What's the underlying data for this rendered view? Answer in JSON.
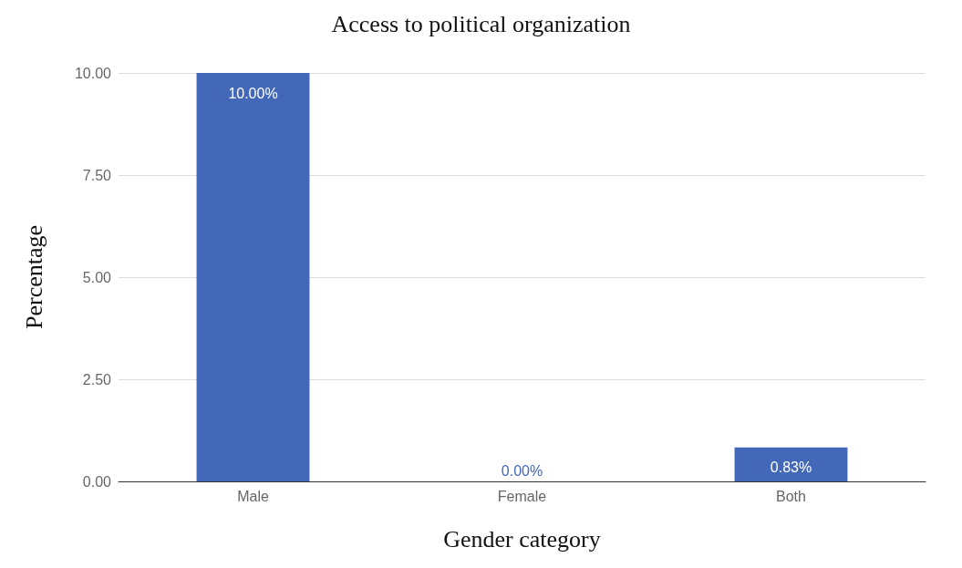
{
  "chart_data": {
    "type": "bar",
    "title": "Access to political organization",
    "xlabel": "Gender category",
    "ylabel": "Percentage",
    "categories": [
      "Male",
      "Female",
      "Both"
    ],
    "values": [
      10,
      0,
      0.83
    ],
    "value_labels": [
      "10.00%",
      "0.00%",
      "0.83%"
    ],
    "color": "#4468b8",
    "ylim": [
      0,
      10
    ],
    "yticks": [
      {
        "value": 0,
        "label": "0.00"
      },
      {
        "value": 2.5,
        "label": "2.50"
      },
      {
        "value": 5,
        "label": "5.00"
      },
      {
        "value": 7.5,
        "label": "7.50"
      },
      {
        "value": 10,
        "label": "10.00"
      }
    ],
    "grid": "y"
  }
}
